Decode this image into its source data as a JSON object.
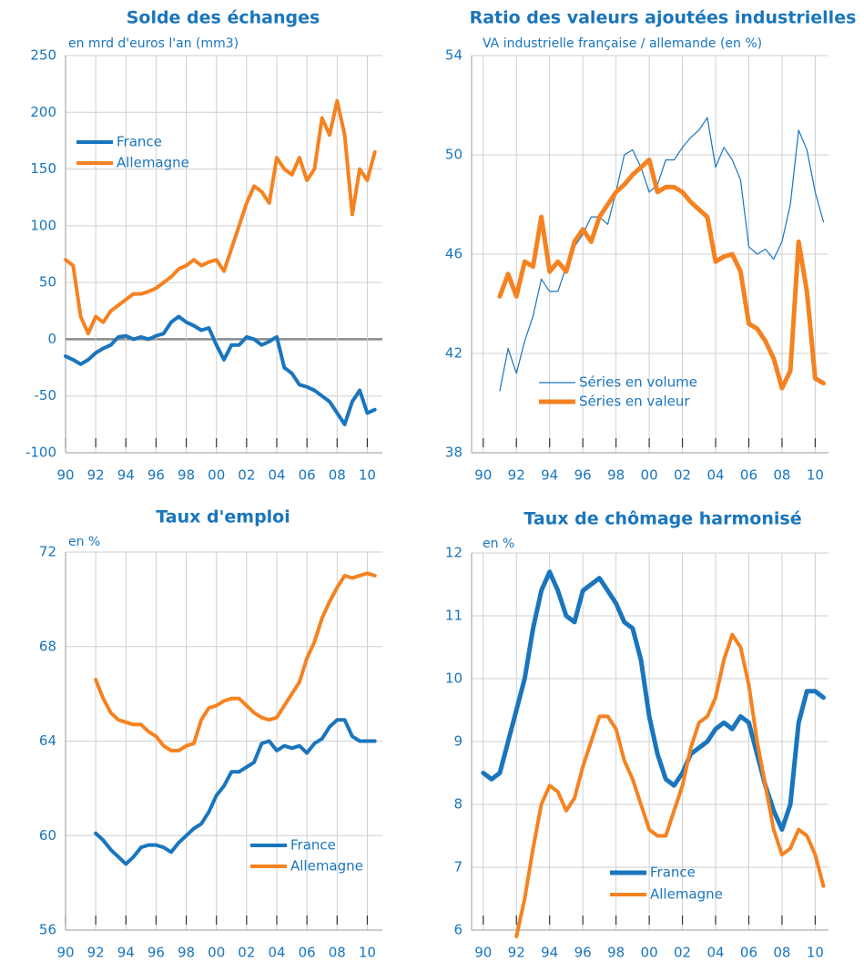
{
  "chart_data": [
    {
      "type": "line",
      "title": "Solde des échanges",
      "subtitle": "en mrd d'euros l'an (mm3)",
      "x": [
        1990,
        1990.5,
        1991,
        1991.5,
        1992,
        1992.5,
        1993,
        1993.5,
        1994,
        1994.5,
        1995,
        1995.5,
        1996,
        1996.5,
        1997,
        1997.5,
        1998,
        1998.5,
        1999,
        1999.5,
        2000,
        2000.5,
        2001,
        2001.5,
        2002,
        2002.5,
        2003,
        2003.5,
        2004,
        2004.5,
        2005,
        2005.5,
        2006,
        2006.5,
        2007,
        2007.5,
        2008,
        2008.5,
        2009,
        2009.5,
        2010,
        2010.5
      ],
      "series": [
        {
          "name": "France",
          "color": "#1a75bc",
          "width": 4,
          "values": [
            -15,
            -18,
            -22,
            -18,
            -12,
            -8,
            -5,
            2,
            3,
            0,
            2,
            0,
            3,
            5,
            15,
            20,
            15,
            12,
            8,
            10,
            -5,
            -18,
            -5,
            -5,
            2,
            0,
            -5,
            -2,
            2,
            -25,
            -30,
            -40,
            -42,
            -45,
            -50,
            -55,
            -65,
            -75,
            -55,
            -45,
            -65,
            -62
          ]
        },
        {
          "name": "Allemagne",
          "color": "#f58220",
          "width": 4,
          "values": [
            70,
            65,
            20,
            5,
            20,
            15,
            25,
            30,
            35,
            40,
            40,
            42,
            45,
            50,
            55,
            62,
            65,
            70,
            65,
            68,
            70,
            60,
            80,
            100,
            120,
            135,
            130,
            120,
            160,
            150,
            145,
            160,
            140,
            150,
            195,
            180,
            210,
            180,
            110,
            150,
            140,
            165
          ]
        }
      ],
      "xlim": [
        1990,
        2011
      ],
      "ylim": [
        -100,
        250
      ],
      "yticks": [
        -100,
        -50,
        0,
        50,
        100,
        150,
        200,
        250
      ],
      "xticks": [
        {
          "value": 1990,
          "label": "90"
        },
        {
          "value": 1992,
          "label": "92"
        },
        {
          "value": 1994,
          "label": "94"
        },
        {
          "value": 1996,
          "label": "96"
        },
        {
          "value": 1998,
          "label": "98"
        },
        {
          "value": 2000,
          "label": "00"
        },
        {
          "value": 2002,
          "label": "02"
        },
        {
          "value": 2004,
          "label": "04"
        },
        {
          "value": 2006,
          "label": "06"
        },
        {
          "value": 2008,
          "label": "08"
        },
        {
          "value": 2010,
          "label": "10"
        }
      ],
      "grid": true,
      "legend": "upper left"
    },
    {
      "type": "line",
      "title": "Ratio des valeurs ajoutées industrielles",
      "subtitle": "VA industrielle française / allemande (en %)",
      "x": [
        1991,
        1991.5,
        1992,
        1992.5,
        1993,
        1993.5,
        1994,
        1994.5,
        1995,
        1995.5,
        1996,
        1996.5,
        1997,
        1997.5,
        1998,
        1998.5,
        1999,
        1999.5,
        2000,
        2000.5,
        2001,
        2001.5,
        2002,
        2002.5,
        2003,
        2003.5,
        2004,
        2004.5,
        2005,
        2005.5,
        2006,
        2006.5,
        2007,
        2007.5,
        2008,
        2008.5,
        2009,
        2009.5,
        2010,
        2010.5
      ],
      "series": [
        {
          "name": "Séries en volume",
          "color": "#1a75bc",
          "width": 1.2,
          "values": [
            40.5,
            42.2,
            41.2,
            42.5,
            43.5,
            45,
            44.5,
            44.5,
            45.5,
            46.3,
            46.8,
            47.5,
            47.5,
            47.2,
            48.5,
            50,
            50.2,
            49.5,
            48.5,
            48.8,
            49.8,
            49.8,
            50.3,
            50.7,
            51,
            51.5,
            49.5,
            50.3,
            49.8,
            49,
            46.3,
            46,
            46.2,
            45.8,
            46.5,
            48,
            51,
            50.2,
            48.5,
            47.3
          ]
        },
        {
          "name": "Séries en valeur",
          "color": "#f58220",
          "width": 5,
          "values": [
            44.3,
            45.2,
            44.3,
            45.7,
            45.5,
            47.5,
            45.3,
            45.7,
            45.3,
            46.5,
            47,
            46.5,
            47.5,
            48,
            48.5,
            48.8,
            49.2,
            49.5,
            49.8,
            48.5,
            48.7,
            48.7,
            48.5,
            48.1,
            47.8,
            47.5,
            45.7,
            45.9,
            46,
            45.3,
            43.2,
            43,
            42.5,
            41.8,
            40.6,
            41.3,
            46.5,
            44.5,
            41,
            40.8
          ]
        }
      ],
      "xlim": [
        1989.3,
        2010.8
      ],
      "ylim": [
        38,
        54
      ],
      "yticks": [
        38,
        42,
        46,
        50,
        54
      ],
      "xticks": [
        {
          "value": 1990,
          "label": "90"
        },
        {
          "value": 1992,
          "label": "92"
        },
        {
          "value": 1994,
          "label": "94"
        },
        {
          "value": 1996,
          "label": "96"
        },
        {
          "value": 1998,
          "label": "98"
        },
        {
          "value": 2000,
          "label": "00"
        },
        {
          "value": 2002,
          "label": "02"
        },
        {
          "value": 2004,
          "label": "04"
        },
        {
          "value": 2006,
          "label": "06"
        },
        {
          "value": 2008,
          "label": "08"
        },
        {
          "value": 2010,
          "label": "10"
        }
      ],
      "grid": true,
      "legend": "lower left"
    },
    {
      "type": "line",
      "title": "Taux d'emploi",
      "subtitle": "en %",
      "x": [
        1992,
        1992.5,
        1993,
        1993.5,
        1994,
        1994.5,
        1995,
        1995.5,
        1996,
        1996.5,
        1997,
        1997.5,
        1998,
        1998.5,
        1999,
        1999.5,
        2000,
        2000.5,
        2001,
        2001.5,
        2002,
        2002.5,
        2003,
        2003.5,
        2004,
        2004.5,
        2005,
        2005.5,
        2006,
        2006.5,
        2007,
        2007.5,
        2008,
        2008.5,
        2009,
        2009.5,
        2010,
        2010.5
      ],
      "series": [
        {
          "name": "France",
          "color": "#1a75bc",
          "width": 4,
          "values": [
            60.1,
            59.8,
            59.4,
            59.1,
            58.8,
            59.1,
            59.5,
            59.6,
            59.6,
            59.5,
            59.3,
            59.7,
            60.0,
            60.3,
            60.5,
            61.0,
            61.7,
            62.1,
            62.7,
            62.7,
            62.9,
            63.1,
            63.9,
            64.0,
            63.6,
            63.8,
            63.7,
            63.8,
            63.5,
            63.9,
            64.1,
            64.6,
            64.9,
            64.9,
            64.2,
            64.0,
            64.0,
            64.0
          ]
        },
        {
          "name": "Allemagne",
          "color": "#f58220",
          "width": 4,
          "values": [
            66.6,
            65.8,
            65.2,
            64.9,
            64.8,
            64.7,
            64.7,
            64.4,
            64.2,
            63.8,
            63.6,
            63.6,
            63.8,
            63.9,
            64.9,
            65.4,
            65.5,
            65.7,
            65.8,
            65.8,
            65.5,
            65.2,
            65.0,
            64.9,
            65.0,
            65.5,
            66.0,
            66.5,
            67.5,
            68.2,
            69.2,
            69.9,
            70.5,
            71.0,
            70.9,
            71.0,
            71.1,
            71.0
          ]
        }
      ],
      "xlim": [
        1990,
        2011
      ],
      "ylim": [
        56,
        72
      ],
      "yticks": [
        56,
        60,
        64,
        68,
        72
      ],
      "xticks": [
        {
          "value": 1990,
          "label": "90"
        },
        {
          "value": 1992,
          "label": "92"
        },
        {
          "value": 1994,
          "label": "94"
        },
        {
          "value": 1996,
          "label": "96"
        },
        {
          "value": 1998,
          "label": "98"
        },
        {
          "value": 2000,
          "label": "00"
        },
        {
          "value": 2002,
          "label": "02"
        },
        {
          "value": 2004,
          "label": "04"
        },
        {
          "value": 2006,
          "label": "06"
        },
        {
          "value": 2008,
          "label": "08"
        },
        {
          "value": 2010,
          "label": "10"
        }
      ],
      "grid": true,
      "legend": "lower right"
    },
    {
      "type": "line",
      "title": "Taux de chômage harmonisé",
      "subtitle": "en %",
      "x": [
        1990,
        1990.5,
        1991,
        1991.5,
        1992,
        1992.5,
        1993,
        1993.5,
        1994,
        1994.5,
        1995,
        1995.5,
        1996,
        1996.5,
        1997,
        1997.5,
        1998,
        1998.5,
        1999,
        1999.5,
        2000,
        2000.5,
        2001,
        2001.5,
        2002,
        2002.5,
        2003,
        2003.5,
        2004,
        2004.5,
        2005,
        2005.5,
        2006,
        2006.5,
        2007,
        2007.5,
        2008,
        2008.5,
        2009,
        2009.5,
        2010,
        2010.5
      ],
      "series": [
        {
          "name": "France",
          "color": "#1a75bc",
          "width": 5,
          "values": [
            8.5,
            8.4,
            8.5,
            9.0,
            9.5,
            10.0,
            10.8,
            11.4,
            11.7,
            11.4,
            11.0,
            10.9,
            11.4,
            11.5,
            11.6,
            11.4,
            11.2,
            10.9,
            10.8,
            10.3,
            9.4,
            8.8,
            8.4,
            8.3,
            8.5,
            8.8,
            8.9,
            9.0,
            9.2,
            9.3,
            9.2,
            9.4,
            9.3,
            8.8,
            8.3,
            7.9,
            7.6,
            8.0,
            9.3,
            9.8,
            9.8,
            9.7
          ]
        },
        {
          "name": "Allemagne",
          "color": "#f58220",
          "width": 4,
          "values": [
            null,
            null,
            null,
            null,
            5.9,
            6.5,
            7.3,
            8.0,
            8.3,
            8.2,
            7.9,
            8.1,
            8.6,
            9.0,
            9.4,
            9.4,
            9.2,
            8.7,
            8.4,
            8.0,
            7.6,
            7.5,
            7.5,
            7.9,
            8.3,
            8.9,
            9.3,
            9.4,
            9.7,
            10.3,
            10.7,
            10.5,
            9.9,
            9.0,
            8.3,
            7.6,
            7.2,
            7.3,
            7.6,
            7.5,
            7.2,
            6.7
          ]
        }
      ],
      "xlim": [
        1989.3,
        2010.8
      ],
      "ylim": [
        6,
        12
      ],
      "yticks": [
        6,
        7,
        8,
        9,
        10,
        11,
        12
      ],
      "xticks": [
        {
          "value": 1990,
          "label": "90"
        },
        {
          "value": 1992,
          "label": "92"
        },
        {
          "value": 1994,
          "label": "94"
        },
        {
          "value": 1996,
          "label": "96"
        },
        {
          "value": 1998,
          "label": "98"
        },
        {
          "value": 2000,
          "label": "00"
        },
        {
          "value": 2002,
          "label": "02"
        },
        {
          "value": 2004,
          "label": "04"
        },
        {
          "value": 2006,
          "label": "06"
        },
        {
          "value": 2008,
          "label": "08"
        },
        {
          "value": 2010,
          "label": "10"
        }
      ],
      "grid": true,
      "legend": "lower center"
    }
  ]
}
